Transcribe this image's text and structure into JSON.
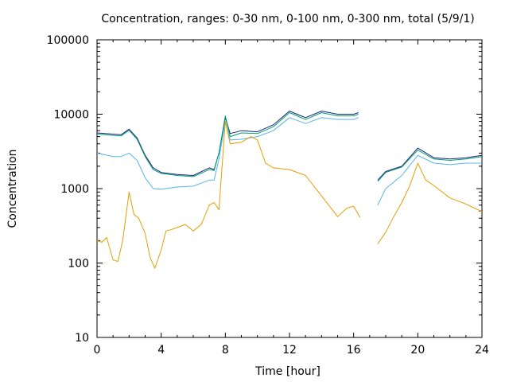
{
  "chart_data": {
    "type": "line",
    "title": "Concentration, ranges: 0-30 nm, 0-100 nm, 0-300 nm, total (5/9/1)",
    "xlabel": "Time [hour]",
    "ylabel": "Concentration",
    "x_ticks": [
      "0",
      "4",
      "8",
      "12",
      "16",
      "20",
      "24"
    ],
    "x_tick_values": [
      0,
      4,
      8,
      12,
      16,
      20,
      24
    ],
    "y_ticks": [
      "10",
      "100",
      "1000",
      "10000",
      "100000"
    ],
    "y_tick_values": [
      10,
      100,
      1000,
      10000,
      100000
    ],
    "xlim": [
      0,
      24
    ],
    "ylim": [
      10,
      100000
    ],
    "y_scale": "log",
    "grid": false,
    "legend": "none",
    "colors": {
      "total": "#1a237e",
      "range_0_300": "#009e73",
      "range_0_100": "#56b4e9",
      "range_0_30": "#e69f00"
    },
    "series": [
      {
        "color": "#1a237e",
        "segments": [
          [
            [
              0,
              5600
            ],
            [
              0.5,
              5500
            ],
            [
              1,
              5400
            ],
            [
              1.5,
              5300
            ],
            [
              2,
              6300
            ],
            [
              2.5,
              4800
            ],
            [
              3,
              2800
            ],
            [
              3.5,
              1900
            ],
            [
              4,
              1650
            ],
            [
              5,
              1550
            ],
            [
              6,
              1500
            ],
            [
              7,
              1900
            ],
            [
              7.3,
              1800
            ],
            [
              7.6,
              3000
            ],
            [
              8,
              9000
            ],
            [
              8.3,
              5500
            ],
            [
              9,
              6000
            ],
            [
              10,
              5800
            ],
            [
              11,
              7200
            ],
            [
              12,
              11000
            ],
            [
              13,
              9000
            ],
            [
              14,
              11000
            ],
            [
              15,
              10000
            ],
            [
              16,
              10000
            ],
            [
              16.3,
              10500
            ]
          ],
          [
            [
              17.5,
              1300
            ],
            [
              18,
              1700
            ],
            [
              19,
              2000
            ],
            [
              20,
              3500
            ],
            [
              21,
              2600
            ],
            [
              22,
              2500
            ],
            [
              23,
              2600
            ],
            [
              24,
              2800
            ]
          ]
        ]
      },
      {
        "color": "#009e73",
        "segments": [
          [
            [
              0,
              5400
            ],
            [
              0.5,
              5300
            ],
            [
              1,
              5200
            ],
            [
              1.5,
              5100
            ],
            [
              2,
              6100
            ],
            [
              2.5,
              4600
            ],
            [
              3,
              2700
            ],
            [
              3.5,
              1800
            ],
            [
              4,
              1600
            ],
            [
              5,
              1500
            ],
            [
              6,
              1450
            ],
            [
              7,
              1800
            ],
            [
              7.3,
              1750
            ],
            [
              7.6,
              3000
            ],
            [
              8,
              9500
            ],
            [
              8.3,
              5000
            ],
            [
              9,
              5600
            ],
            [
              10,
              5500
            ],
            [
              11,
              6800
            ],
            [
              12,
              10500
            ],
            [
              13,
              8500
            ],
            [
              14,
              10500
            ],
            [
              15,
              9500
            ],
            [
              16,
              9500
            ],
            [
              16.3,
              10000
            ]
          ],
          [
            [
              17.5,
              1250
            ],
            [
              18,
              1650
            ],
            [
              19,
              1950
            ],
            [
              20,
              3300
            ],
            [
              21,
              2500
            ],
            [
              22,
              2400
            ],
            [
              23,
              2500
            ],
            [
              24,
              2700
            ]
          ]
        ]
      },
      {
        "color": "#56b4e9",
        "segments": [
          [
            [
              0,
              3000
            ],
            [
              0.5,
              2850
            ],
            [
              1,
              2700
            ],
            [
              1.5,
              2700
            ],
            [
              2,
              3000
            ],
            [
              2.5,
              2400
            ],
            [
              3,
              1400
            ],
            [
              3.5,
              1000
            ],
            [
              4,
              980
            ],
            [
              5,
              1050
            ],
            [
              6,
              1080
            ],
            [
              7,
              1300
            ],
            [
              7.3,
              1300
            ],
            [
              7.6,
              2500
            ],
            [
              8,
              8000
            ],
            [
              8.3,
              4500
            ],
            [
              9,
              4600
            ],
            [
              10,
              5000
            ],
            [
              11,
              6000
            ],
            [
              12,
              9000
            ],
            [
              13,
              7500
            ],
            [
              14,
              9000
            ],
            [
              15,
              8500
            ],
            [
              16,
              8500
            ],
            [
              16.3,
              9000
            ]
          ],
          [
            [
              17.5,
              600
            ],
            [
              18,
              1000
            ],
            [
              19,
              1500
            ],
            [
              20,
              2800
            ],
            [
              21,
              2200
            ],
            [
              22,
              2100
            ],
            [
              23,
              2200
            ],
            [
              24,
              2200
            ]
          ]
        ]
      },
      {
        "color": "#e69f00",
        "segments": [
          [
            [
              0,
              200
            ],
            [
              0.3,
              190
            ],
            [
              0.6,
              220
            ],
            [
              1,
              110
            ],
            [
              1.3,
              105
            ],
            [
              1.6,
              200
            ],
            [
              2,
              900
            ],
            [
              2.3,
              450
            ],
            [
              2.6,
              400
            ],
            [
              3,
              250
            ],
            [
              3.3,
              120
            ],
            [
              3.6,
              85
            ],
            [
              4,
              150
            ],
            [
              4.3,
              270
            ],
            [
              4.6,
              280
            ],
            [
              5,
              300
            ],
            [
              5.5,
              330
            ],
            [
              6,
              270
            ],
            [
              6.5,
              330
            ],
            [
              7,
              600
            ],
            [
              7.3,
              650
            ],
            [
              7.6,
              520
            ],
            [
              8,
              8000
            ],
            [
              8.3,
              4000
            ],
            [
              9,
              4200
            ],
            [
              9.6,
              5000
            ],
            [
              10,
              4500
            ],
            [
              10.5,
              2200
            ],
            [
              11,
              1900
            ],
            [
              12,
              1800
            ],
            [
              13,
              1500
            ],
            [
              14,
              800
            ],
            [
              15,
              420
            ],
            [
              15.6,
              550
            ],
            [
              16,
              580
            ],
            [
              16.4,
              410
            ]
          ],
          [
            [
              17.5,
              180
            ],
            [
              18,
              260
            ],
            [
              18.5,
              420
            ],
            [
              19,
              650
            ],
            [
              19.5,
              1100
            ],
            [
              20,
              2200
            ],
            [
              20.5,
              1300
            ],
            [
              21,
              1100
            ],
            [
              22,
              750
            ],
            [
              23,
              620
            ],
            [
              24,
              490
            ]
          ]
        ]
      }
    ]
  }
}
